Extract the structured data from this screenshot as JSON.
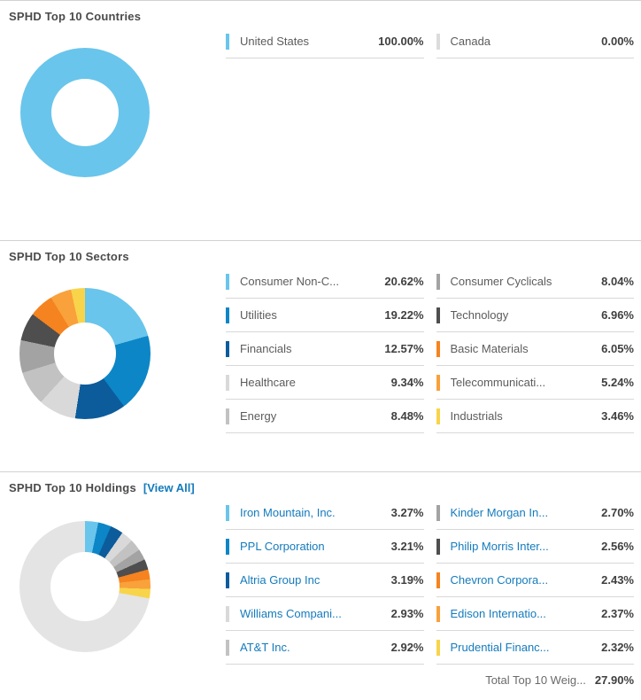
{
  "link_color": "#147bbd",
  "sections": [
    {
      "title": "SPHD Top 10 Countries"
    },
    {
      "title": "SPHD Top 10 Sectors"
    },
    {
      "title": "SPHD Top 10 Holdings",
      "view_all_label": "[View All]",
      "total_label": "Total Top 10 Weig...",
      "total_value": "27.90%"
    }
  ],
  "chart_data": [
    {
      "type": "pie",
      "subtype": "donut",
      "title": "SPHD Top 10 Countries",
      "legend_position": "right",
      "slices": [
        {
          "label": "United States",
          "value": 100.0,
          "display": "100.00%",
          "color": "#69c5eb"
        },
        {
          "label": "Canada",
          "value": 0.0,
          "display": "0.00%",
          "color": "#dcdcdc"
        }
      ]
    },
    {
      "type": "pie",
      "subtype": "donut",
      "title": "SPHD Top 10 Sectors",
      "legend_position": "right",
      "slices": [
        {
          "label": "Consumer Non-C...",
          "value": 20.62,
          "display": "20.62%",
          "color": "#69c5eb"
        },
        {
          "label": "Utilities",
          "value": 19.22,
          "display": "19.22%",
          "color": "#0c86c6"
        },
        {
          "label": "Financials",
          "value": 12.57,
          "display": "12.57%",
          "color": "#0c5c9c"
        },
        {
          "label": "Healthcare",
          "value": 9.34,
          "display": "9.34%",
          "color": "#d9d9d9"
        },
        {
          "label": "Energy",
          "value": 8.48,
          "display": "8.48%",
          "color": "#c2c2c2"
        },
        {
          "label": "Consumer Cyclicals",
          "value": 8.04,
          "display": "8.04%",
          "color": "#a3a3a3"
        },
        {
          "label": "Technology",
          "value": 6.96,
          "display": "6.96%",
          "color": "#4e4e4e"
        },
        {
          "label": "Basic Materials",
          "value": 6.05,
          "display": "6.05%",
          "color": "#f5831f"
        },
        {
          "label": "Telecommunicati...",
          "value": 5.24,
          "display": "5.24%",
          "color": "#f9a13b"
        },
        {
          "label": "Industrials",
          "value": 3.46,
          "display": "3.46%",
          "color": "#f8d44a"
        }
      ]
    },
    {
      "type": "pie",
      "subtype": "donut",
      "title": "SPHD Top 10 Holdings",
      "legend_position": "right",
      "slices": [
        {
          "label": "Iron Mountain, Inc.",
          "value": 3.27,
          "display": "3.27%",
          "color": "#69c5eb"
        },
        {
          "label": "PPL Corporation",
          "value": 3.21,
          "display": "3.21%",
          "color": "#0c86c6"
        },
        {
          "label": "Altria Group Inc",
          "value": 3.19,
          "display": "3.19%",
          "color": "#0c5c9c"
        },
        {
          "label": "Williams Compani...",
          "value": 2.93,
          "display": "2.93%",
          "color": "#d9d9d9"
        },
        {
          "label": "AT&T Inc.",
          "value": 2.92,
          "display": "2.92%",
          "color": "#c2c2c2"
        },
        {
          "label": "Kinder Morgan In...",
          "value": 2.7,
          "display": "2.70%",
          "color": "#a3a3a3"
        },
        {
          "label": "Philip Morris Inter...",
          "value": 2.56,
          "display": "2.56%",
          "color": "#4e4e4e"
        },
        {
          "label": "Chevron Corpora...",
          "value": 2.43,
          "display": "2.43%",
          "color": "#f5831f"
        },
        {
          "label": "Edison Internatio...",
          "value": 2.37,
          "display": "2.37%",
          "color": "#f9a13b"
        },
        {
          "label": "Prudential Financ...",
          "value": 2.32,
          "display": "2.32%",
          "color": "#f8d44a"
        },
        {
          "label": "Other",
          "value": 72.1,
          "display": "",
          "color": "#e4e4e4",
          "in_legend": false
        }
      ]
    }
  ]
}
